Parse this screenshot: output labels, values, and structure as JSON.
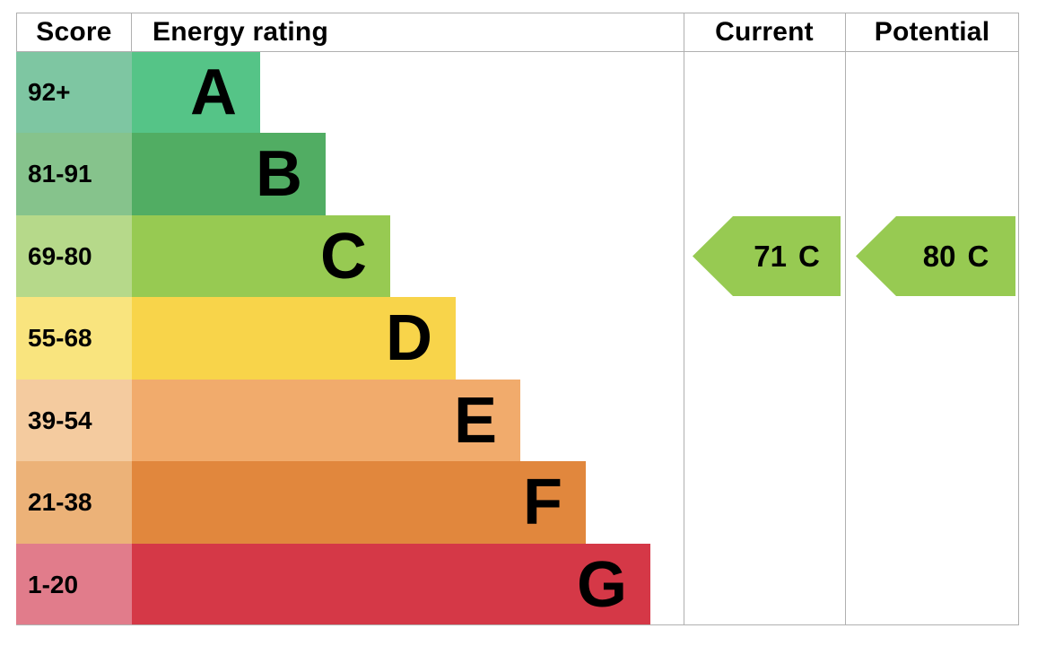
{
  "header": {
    "score": "Score",
    "energy_rating": "Energy rating",
    "current": "Current",
    "potential": "Potential"
  },
  "bands": [
    {
      "letter": "A",
      "score": "92+",
      "bar_color": "#55c487",
      "score_color": "#7ec6a2"
    },
    {
      "letter": "B",
      "score": "81-91",
      "bar_color": "#51ad63",
      "score_color": "#86c38c"
    },
    {
      "letter": "C",
      "score": "69-80",
      "bar_color": "#97ca52",
      "score_color": "#b6d98a"
    },
    {
      "letter": "D",
      "score": "55-68",
      "bar_color": "#f8d44a",
      "score_color": "#f9e47e"
    },
    {
      "letter": "E",
      "score": "39-54",
      "bar_color": "#f1ab6c",
      "score_color": "#f4cb9f"
    },
    {
      "letter": "F",
      "score": "21-38",
      "bar_color": "#e1873d",
      "score_color": "#ecb278"
    },
    {
      "letter": "G",
      "score": "1-20",
      "bar_color": "#d53847",
      "score_color": "#e17c8b"
    }
  ],
  "current": {
    "value": "71",
    "letter": "C",
    "arrow_color": "#97ca52",
    "band_index": 2
  },
  "potential": {
    "value": "80",
    "letter": "C",
    "arrow_color": "#97ca52",
    "band_index": 2
  },
  "colors": {
    "grid_line": "#b0b0b0",
    "text": "#000000",
    "background": "#ffffff"
  },
  "chart_data": {
    "type": "bar",
    "title": "EPC energy efficiency rating chart",
    "categories": [
      "A",
      "B",
      "C",
      "D",
      "E",
      "F",
      "G"
    ],
    "score_ranges": [
      "92+",
      "81-91",
      "69-80",
      "55-68",
      "39-54",
      "21-38",
      "1-20"
    ],
    "bar_relative_widths": [
      1,
      1.5,
      2,
      2.5,
      3,
      3.5,
      4
    ],
    "band_colors": [
      "#55c487",
      "#51ad63",
      "#97ca52",
      "#f8d44a",
      "#f1ab6c",
      "#e1873d",
      "#d53847"
    ],
    "series": [
      {
        "name": "Current",
        "score": 71,
        "rating": "C"
      },
      {
        "name": "Potential",
        "score": 80,
        "rating": "C"
      }
    ],
    "legend_position": "none",
    "grid": false
  }
}
